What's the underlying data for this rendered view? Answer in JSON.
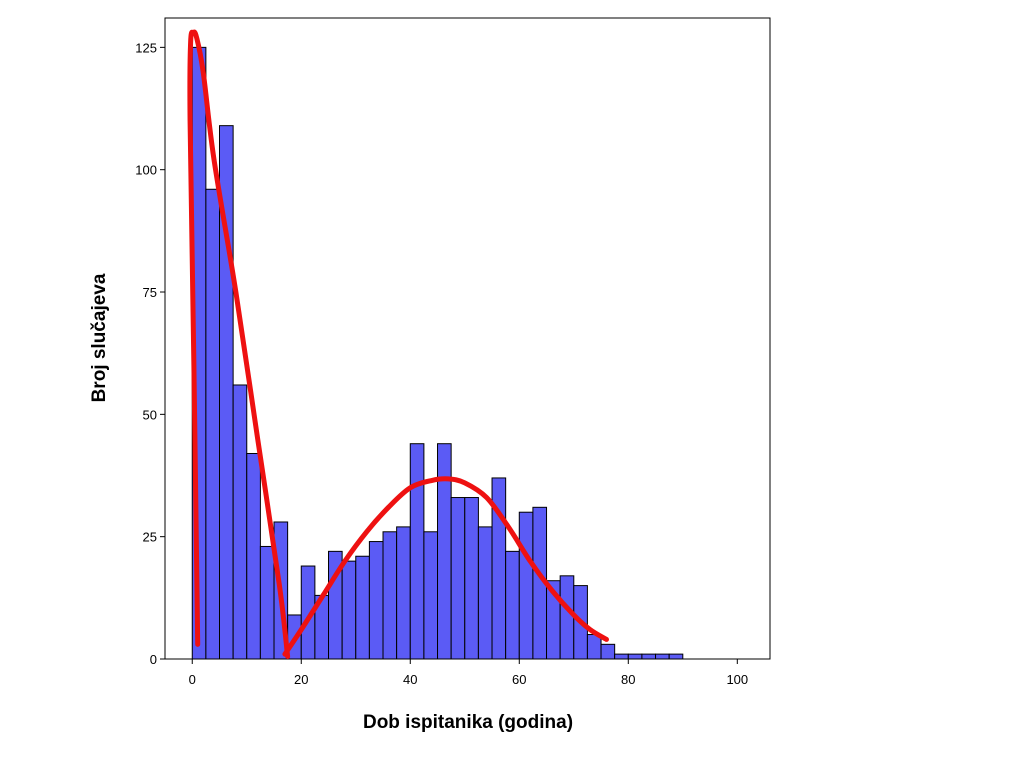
{
  "chart_data": {
    "type": "bar",
    "xlabel": "Dob ispitanika (godina)",
    "ylabel": "Broj slučajeva",
    "xlim": [
      -5,
      106
    ],
    "ylim": [
      0,
      131
    ],
    "xticks": [
      0,
      20,
      40,
      60,
      80,
      100
    ],
    "yticks": [
      0,
      25,
      50,
      75,
      100,
      125
    ],
    "grid": false,
    "bin_width": 2.5,
    "bins": [
      {
        "start": 0,
        "value": 125
      },
      {
        "start": 2.5,
        "value": 96
      },
      {
        "start": 5,
        "value": 109
      },
      {
        "start": 7.5,
        "value": 56
      },
      {
        "start": 10,
        "value": 42
      },
      {
        "start": 12.5,
        "value": 23
      },
      {
        "start": 15,
        "value": 28
      },
      {
        "start": 17.5,
        "value": 9
      },
      {
        "start": 20,
        "value": 19
      },
      {
        "start": 22.5,
        "value": 13
      },
      {
        "start": 25,
        "value": 22
      },
      {
        "start": 27.5,
        "value": 20
      },
      {
        "start": 30,
        "value": 21
      },
      {
        "start": 32.5,
        "value": 24
      },
      {
        "start": 35,
        "value": 26
      },
      {
        "start": 37.5,
        "value": 27
      },
      {
        "start": 40,
        "value": 44
      },
      {
        "start": 42.5,
        "value": 26
      },
      {
        "start": 45,
        "value": 44
      },
      {
        "start": 47.5,
        "value": 33
      },
      {
        "start": 50,
        "value": 33
      },
      {
        "start": 52.5,
        "value": 27
      },
      {
        "start": 55,
        "value": 37
      },
      {
        "start": 57.5,
        "value": 22
      },
      {
        "start": 60,
        "value": 30
      },
      {
        "start": 62.5,
        "value": 31
      },
      {
        "start": 65,
        "value": 16
      },
      {
        "start": 67.5,
        "value": 17
      },
      {
        "start": 70,
        "value": 15
      },
      {
        "start": 72.5,
        "value": 5
      },
      {
        "start": 75,
        "value": 3
      },
      {
        "start": 77.5,
        "value": 1
      },
      {
        "start": 80,
        "value": 1
      },
      {
        "start": 82.5,
        "value": 1
      },
      {
        "start": 85,
        "value": 1
      },
      {
        "start": 87.5,
        "value": 1
      }
    ],
    "curves": [
      {
        "color": "#ee1111",
        "points": [
          [
            1,
            3
          ],
          [
            0.3,
            60
          ],
          [
            -0.4,
            110
          ],
          [
            -0.3,
            126
          ],
          [
            0.2,
            128
          ],
          [
            0.8,
            127
          ],
          [
            2,
            120
          ],
          [
            4,
            102
          ],
          [
            8,
            75
          ],
          [
            12,
            45
          ],
          [
            16,
            15
          ],
          [
            17.5,
            0.5
          ]
        ]
      },
      {
        "color": "#ee1111",
        "points": [
          [
            17,
            1
          ],
          [
            20,
            6
          ],
          [
            24,
            13
          ],
          [
            28,
            20
          ],
          [
            32,
            26
          ],
          [
            36,
            31
          ],
          [
            40,
            35
          ],
          [
            44,
            36.5
          ],
          [
            47,
            36.8
          ],
          [
            50,
            36
          ],
          [
            54,
            33
          ],
          [
            58,
            27
          ],
          [
            62,
            20
          ],
          [
            66,
            14
          ],
          [
            70,
            9
          ],
          [
            73,
            6
          ],
          [
            76,
            4
          ]
        ]
      }
    ]
  }
}
